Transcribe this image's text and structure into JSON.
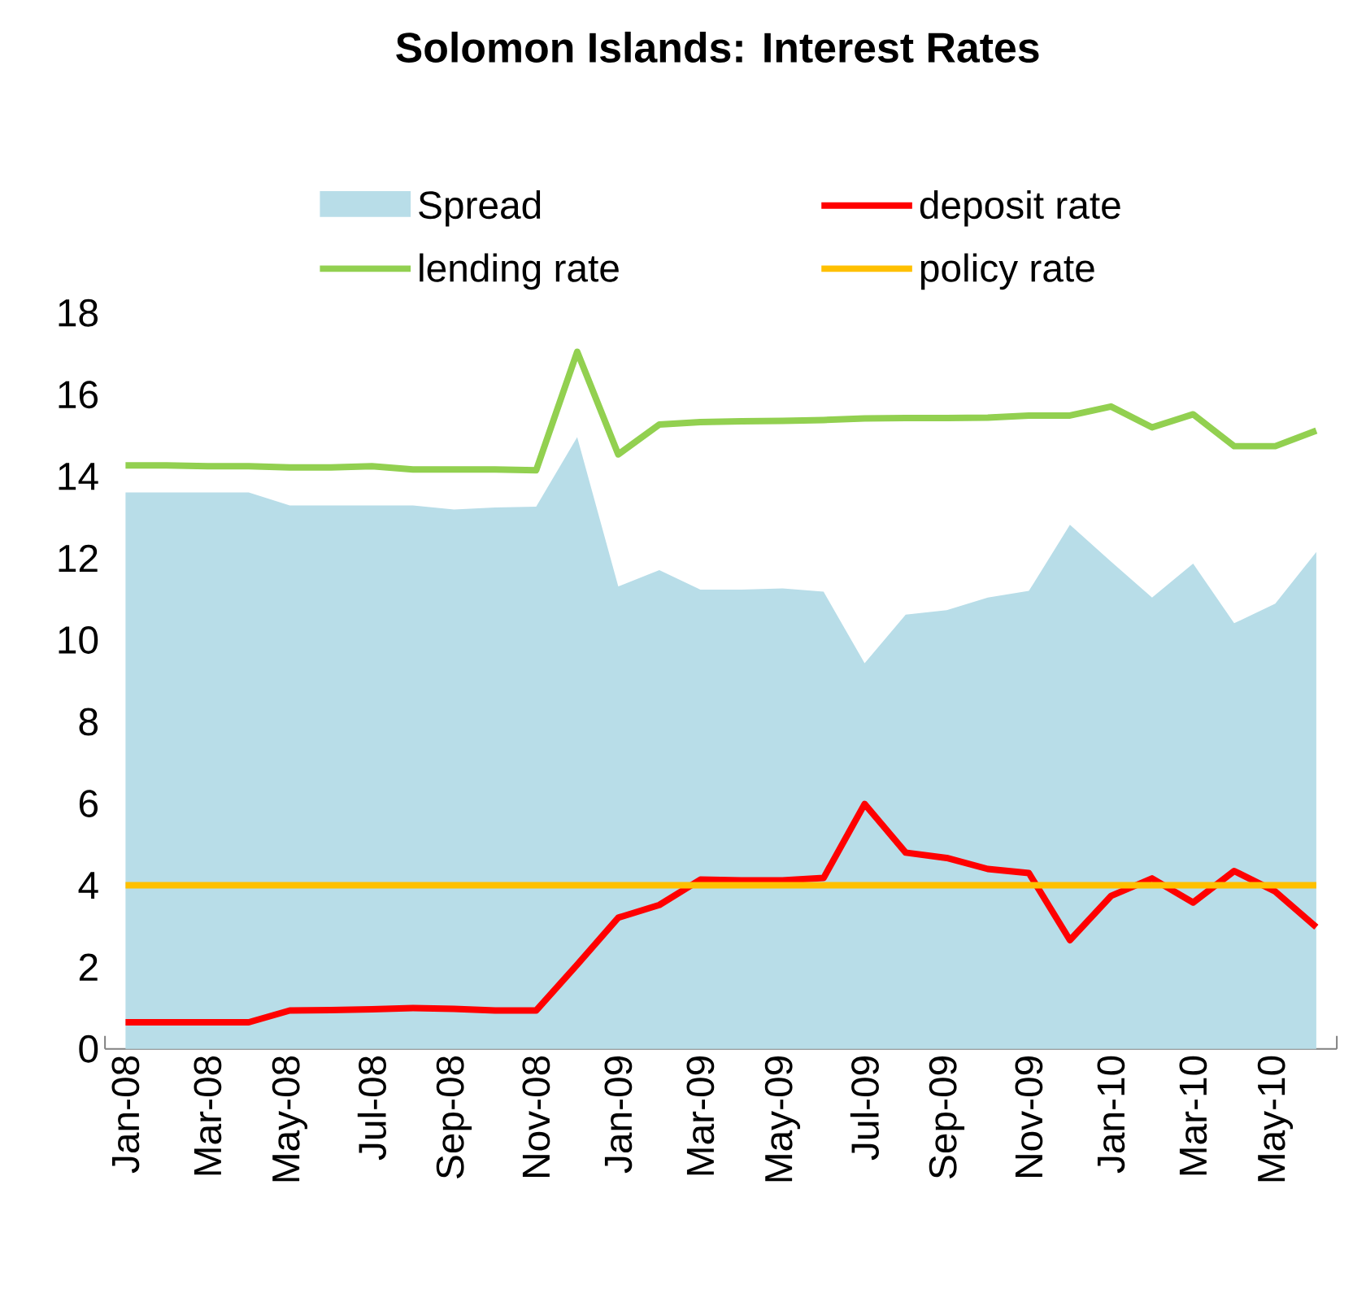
{
  "chart_data": {
    "type": "line",
    "title": "Solomon Islands: Interest Rates",
    "categories": [
      "Jan-08",
      null,
      "Mar-08",
      null,
      "May-08",
      null,
      "Jul-08",
      null,
      "Sep-08",
      null,
      "Nov-08",
      null,
      "Jan-09",
      null,
      "Mar-09",
      null,
      "May-09",
      null,
      "Jul-09",
      null,
      "Sep-09",
      null,
      "Nov-09",
      null,
      "Jan-10",
      null,
      "Mar-10",
      null,
      "May-10",
      null
    ],
    "series": [
      {
        "name": "Spread",
        "type": "area",
        "color": "#b8dde8",
        "values": [
          13.61,
          13.61,
          13.61,
          13.61,
          13.29,
          13.29,
          13.29,
          13.29,
          13.19,
          13.24,
          13.26,
          14.96,
          11.31,
          11.71,
          11.23,
          11.23,
          11.26,
          11.18,
          9.43,
          10.62,
          10.73,
          11.04,
          11.2,
          12.82,
          11.92,
          11.04,
          11.87,
          10.41,
          10.89,
          12.15
        ]
      },
      {
        "name": "deposit rate",
        "color": "#ff0000",
        "values": [
          0.65,
          0.65,
          0.65,
          0.65,
          0.94,
          0.95,
          0.97,
          1.0,
          0.98,
          0.94,
          0.94,
          2.06,
          3.21,
          3.52,
          4.14,
          4.12,
          4.12,
          4.18,
          5.99,
          4.8,
          4.67,
          4.4,
          4.3,
          2.66,
          3.74,
          4.17,
          3.58,
          4.35,
          3.85,
          2.98
        ]
      },
      {
        "name": "lending rate",
        "color": "#92d050",
        "values": [
          14.27,
          14.27,
          14.25,
          14.25,
          14.22,
          14.22,
          14.25,
          14.17,
          14.17,
          14.17,
          14.15,
          17.05,
          14.54,
          15.27,
          15.33,
          15.35,
          15.36,
          15.38,
          15.42,
          15.43,
          15.43,
          15.44,
          15.49,
          15.49,
          15.71,
          15.2,
          15.52,
          14.74,
          14.74,
          15.12
        ]
      },
      {
        "name": "policy rate",
        "color": "#ffc000",
        "values": [
          4,
          4,
          4,
          4,
          4,
          4,
          4,
          4,
          4,
          4,
          4,
          4,
          4,
          4,
          4,
          4,
          4,
          4,
          4,
          4,
          4,
          4,
          4,
          4,
          4,
          4,
          4,
          4,
          4,
          4
        ]
      }
    ],
    "ylim": [
      0,
      18
    ],
    "yticks": [
      0,
      2,
      4,
      6,
      8,
      10,
      12,
      14,
      16,
      18
    ],
    "grid": false,
    "legend": "top",
    "marker": "none",
    "line_style": "solid"
  }
}
